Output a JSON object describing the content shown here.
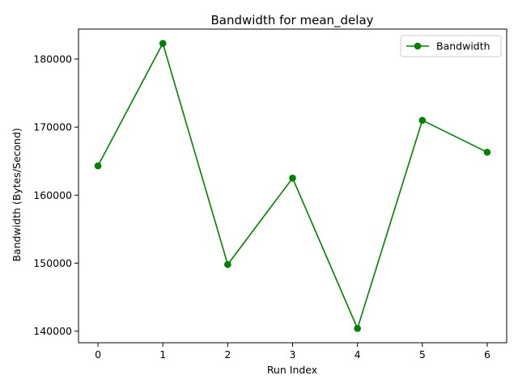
{
  "chart_data": {
    "type": "line",
    "title": "Bandwidth for mean_delay",
    "xlabel": "Run Index",
    "ylabel": "Bandwidth (Bytes/Second)",
    "x": [
      0,
      1,
      2,
      3,
      4,
      5,
      6
    ],
    "series": [
      {
        "name": "Bandwidth",
        "color": "#008000",
        "marker": "circle",
        "values": [
          164300,
          182300,
          149800,
          162500,
          140400,
          171000,
          166300
        ]
      }
    ],
    "xlim": [
      -0.3,
      6.3
    ],
    "ylim": [
      138300,
      184400
    ],
    "xticks": [
      0,
      1,
      2,
      3,
      4,
      5,
      6
    ],
    "yticks": [
      140000,
      150000,
      160000,
      170000,
      180000
    ],
    "ytick_labels": [
      "140000",
      "150000",
      "160000",
      "170000",
      "180000"
    ],
    "grid": false,
    "legend_position": "top-right"
  }
}
